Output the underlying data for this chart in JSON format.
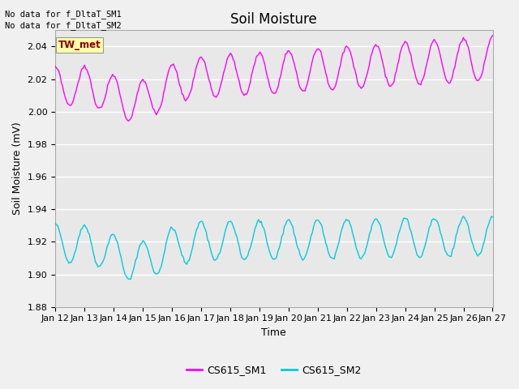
{
  "title": "Soil Moisture",
  "ylabel": "Soil Moisture (mV)",
  "xlabel": "Time",
  "xlim_days": [
    12,
    27
  ],
  "ylim": [
    1.88,
    2.05
  ],
  "yticks": [
    1.88,
    1.9,
    1.92,
    1.94,
    1.96,
    1.98,
    2.0,
    2.02,
    2.04
  ],
  "xtick_labels": [
    "Jan 12",
    "Jan 13",
    "Jan 14",
    "Jan 15",
    "Jan 16",
    "Jan 17",
    "Jan 18",
    "Jan 19",
    "Jan 20",
    "Jan 21",
    "Jan 22",
    "Jan 23",
    "Jan 24",
    "Jan 25",
    "Jan 26",
    "Jan 27"
  ],
  "series1_color": "#FF00FF",
  "series2_color": "#00CCDD",
  "series1_label": "CS615_SM1",
  "series2_label": "CS615_SM2",
  "no_data_text1": "No data for f_DltaT_SM1",
  "no_data_text2": "No data for f_DltaT_SM2",
  "annotation_text": "TW_met",
  "annotation_color": "#8B0000",
  "annotation_bg": "#FFFFAA",
  "background_color": "#E8E8E8",
  "fig_background": "#F0F0F0",
  "grid_color": "#FFFFFF",
  "title_fontsize": 12,
  "axis_fontsize": 9,
  "tick_fontsize": 8
}
